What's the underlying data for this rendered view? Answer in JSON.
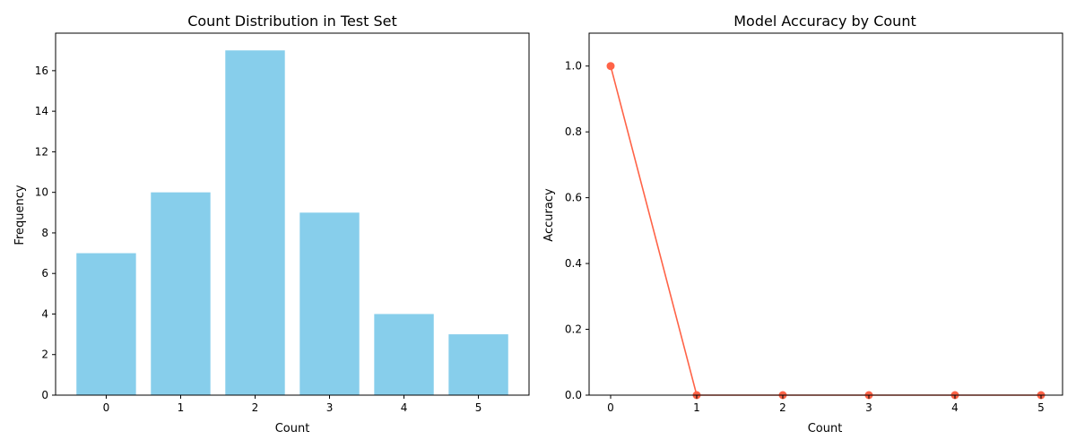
{
  "chart_data": [
    {
      "type": "bar",
      "title": "Count Distribution in Test Set",
      "xlabel": "Count",
      "ylabel": "Frequency",
      "categories": [
        "0",
        "1",
        "2",
        "3",
        "4",
        "5"
      ],
      "values": [
        7,
        10,
        17,
        9,
        4,
        3
      ],
      "ylim": [
        0,
        17.85
      ],
      "yticks": [
        0,
        2,
        4,
        6,
        8,
        10,
        12,
        14,
        16
      ],
      "color": "#87CEEB",
      "grid": false
    },
    {
      "type": "line",
      "title": "Model Accuracy by Count",
      "xlabel": "Count",
      "ylabel": "Accuracy",
      "x": [
        0,
        1,
        2,
        3,
        4,
        5
      ],
      "y": [
        1.0,
        0.0,
        0.0,
        0.0,
        0.0,
        0.0
      ],
      "xlim": [
        -0.25,
        5.25
      ],
      "ylim": [
        0,
        1.1
      ],
      "xticks": [
        0,
        1,
        2,
        3,
        4,
        5
      ],
      "yticks": [
        "0.0",
        "0.2",
        "0.4",
        "0.6",
        "0.8",
        "1.0"
      ],
      "color": "#FF6347",
      "marker": "circle",
      "grid": false
    }
  ]
}
